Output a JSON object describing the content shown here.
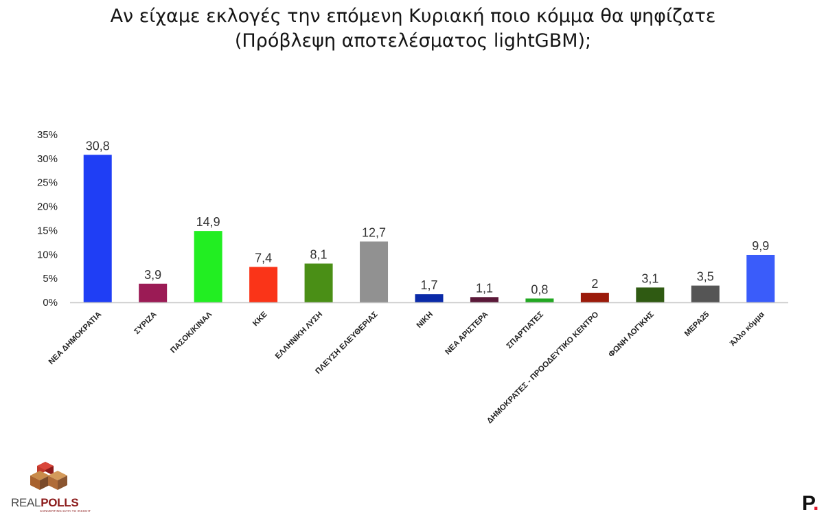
{
  "title": {
    "line1": "Αν είχαμε εκλογές την επόμενη Κυριακή ποιο κόμμα θα ψηφίζατε",
    "line2": "(Πρόβλεψη αποτελέσματος lightGBM);"
  },
  "chart_data": {
    "type": "bar",
    "title": "Αν είχαμε εκλογές την επόμενη Κυριακή ποιο κόμμα θα ψηφίζατε (Πρόβλεψη αποτελέσματος lightGBM);",
    "xlabel": "",
    "ylabel": "",
    "ylim": [
      0,
      35
    ],
    "yticks": [
      "0%",
      "5%",
      "10%",
      "15%",
      "20%",
      "25%",
      "30%",
      "35%"
    ],
    "grid": false,
    "categories": [
      "ΝΕΑ ΔΗΜΟΚΡΑΤΙΑ",
      "ΣΥΡΙΖΑ",
      "ΠΑΣΟΚ/ΚΙΝΑΛ",
      "ΚΚΕ",
      "ΕΛΛΗΝΙΚΗ ΛΥΣΗ",
      "ΠΛΕΥΣΗ ΕΛΕΥΘΕΡΙΑΣ",
      "ΝΙΚΗ",
      "ΝΕΑ ΑΡΙΣΤΕΡΑ",
      "ΣΠΑΡΤΙΑΤΕΣ",
      "ΔΗΜΟΚΡΑΤΕΣ - ΠΡΟΟΔΕΥΤΙΚΟ ΚΕΝΤΡΟ",
      "ΦΩΝΗ ΛΟΓΙΚΗΣ",
      "ΜΕΡΑ25",
      "Άλλο κόμμα"
    ],
    "values": [
      30.8,
      3.9,
      14.9,
      7.4,
      8.1,
      12.7,
      1.7,
      1.1,
      0.8,
      2,
      3.1,
      3.5,
      9.9
    ],
    "value_labels": [
      "30,8",
      "3,9",
      "14,9",
      "7,4",
      "8,1",
      "12,7",
      "1,7",
      "1,1",
      "0,8",
      "2",
      "3,1",
      "3,5",
      "9,9"
    ],
    "colors": [
      "#1f3ef5",
      "#9b1b55",
      "#22ee22",
      "#fa3418",
      "#4a8f16",
      "#919191",
      "#0a2aa8",
      "#5a1838",
      "#22a822",
      "#9b1a0a",
      "#2f5a12",
      "#555555",
      "#3a5cfa"
    ]
  },
  "logo": {
    "text_part1": "REAL",
    "text_part2": "POLLS",
    "tagline": "CONVERTING DATA TO INSIGHT",
    "colors": [
      "#c0392b",
      "#8b1a1a",
      "#c98b4a",
      "#7a4a2a"
    ]
  },
  "brand_mark": {
    "letter": "P",
    "dot": ".",
    "dot_color": "#e0162b"
  }
}
